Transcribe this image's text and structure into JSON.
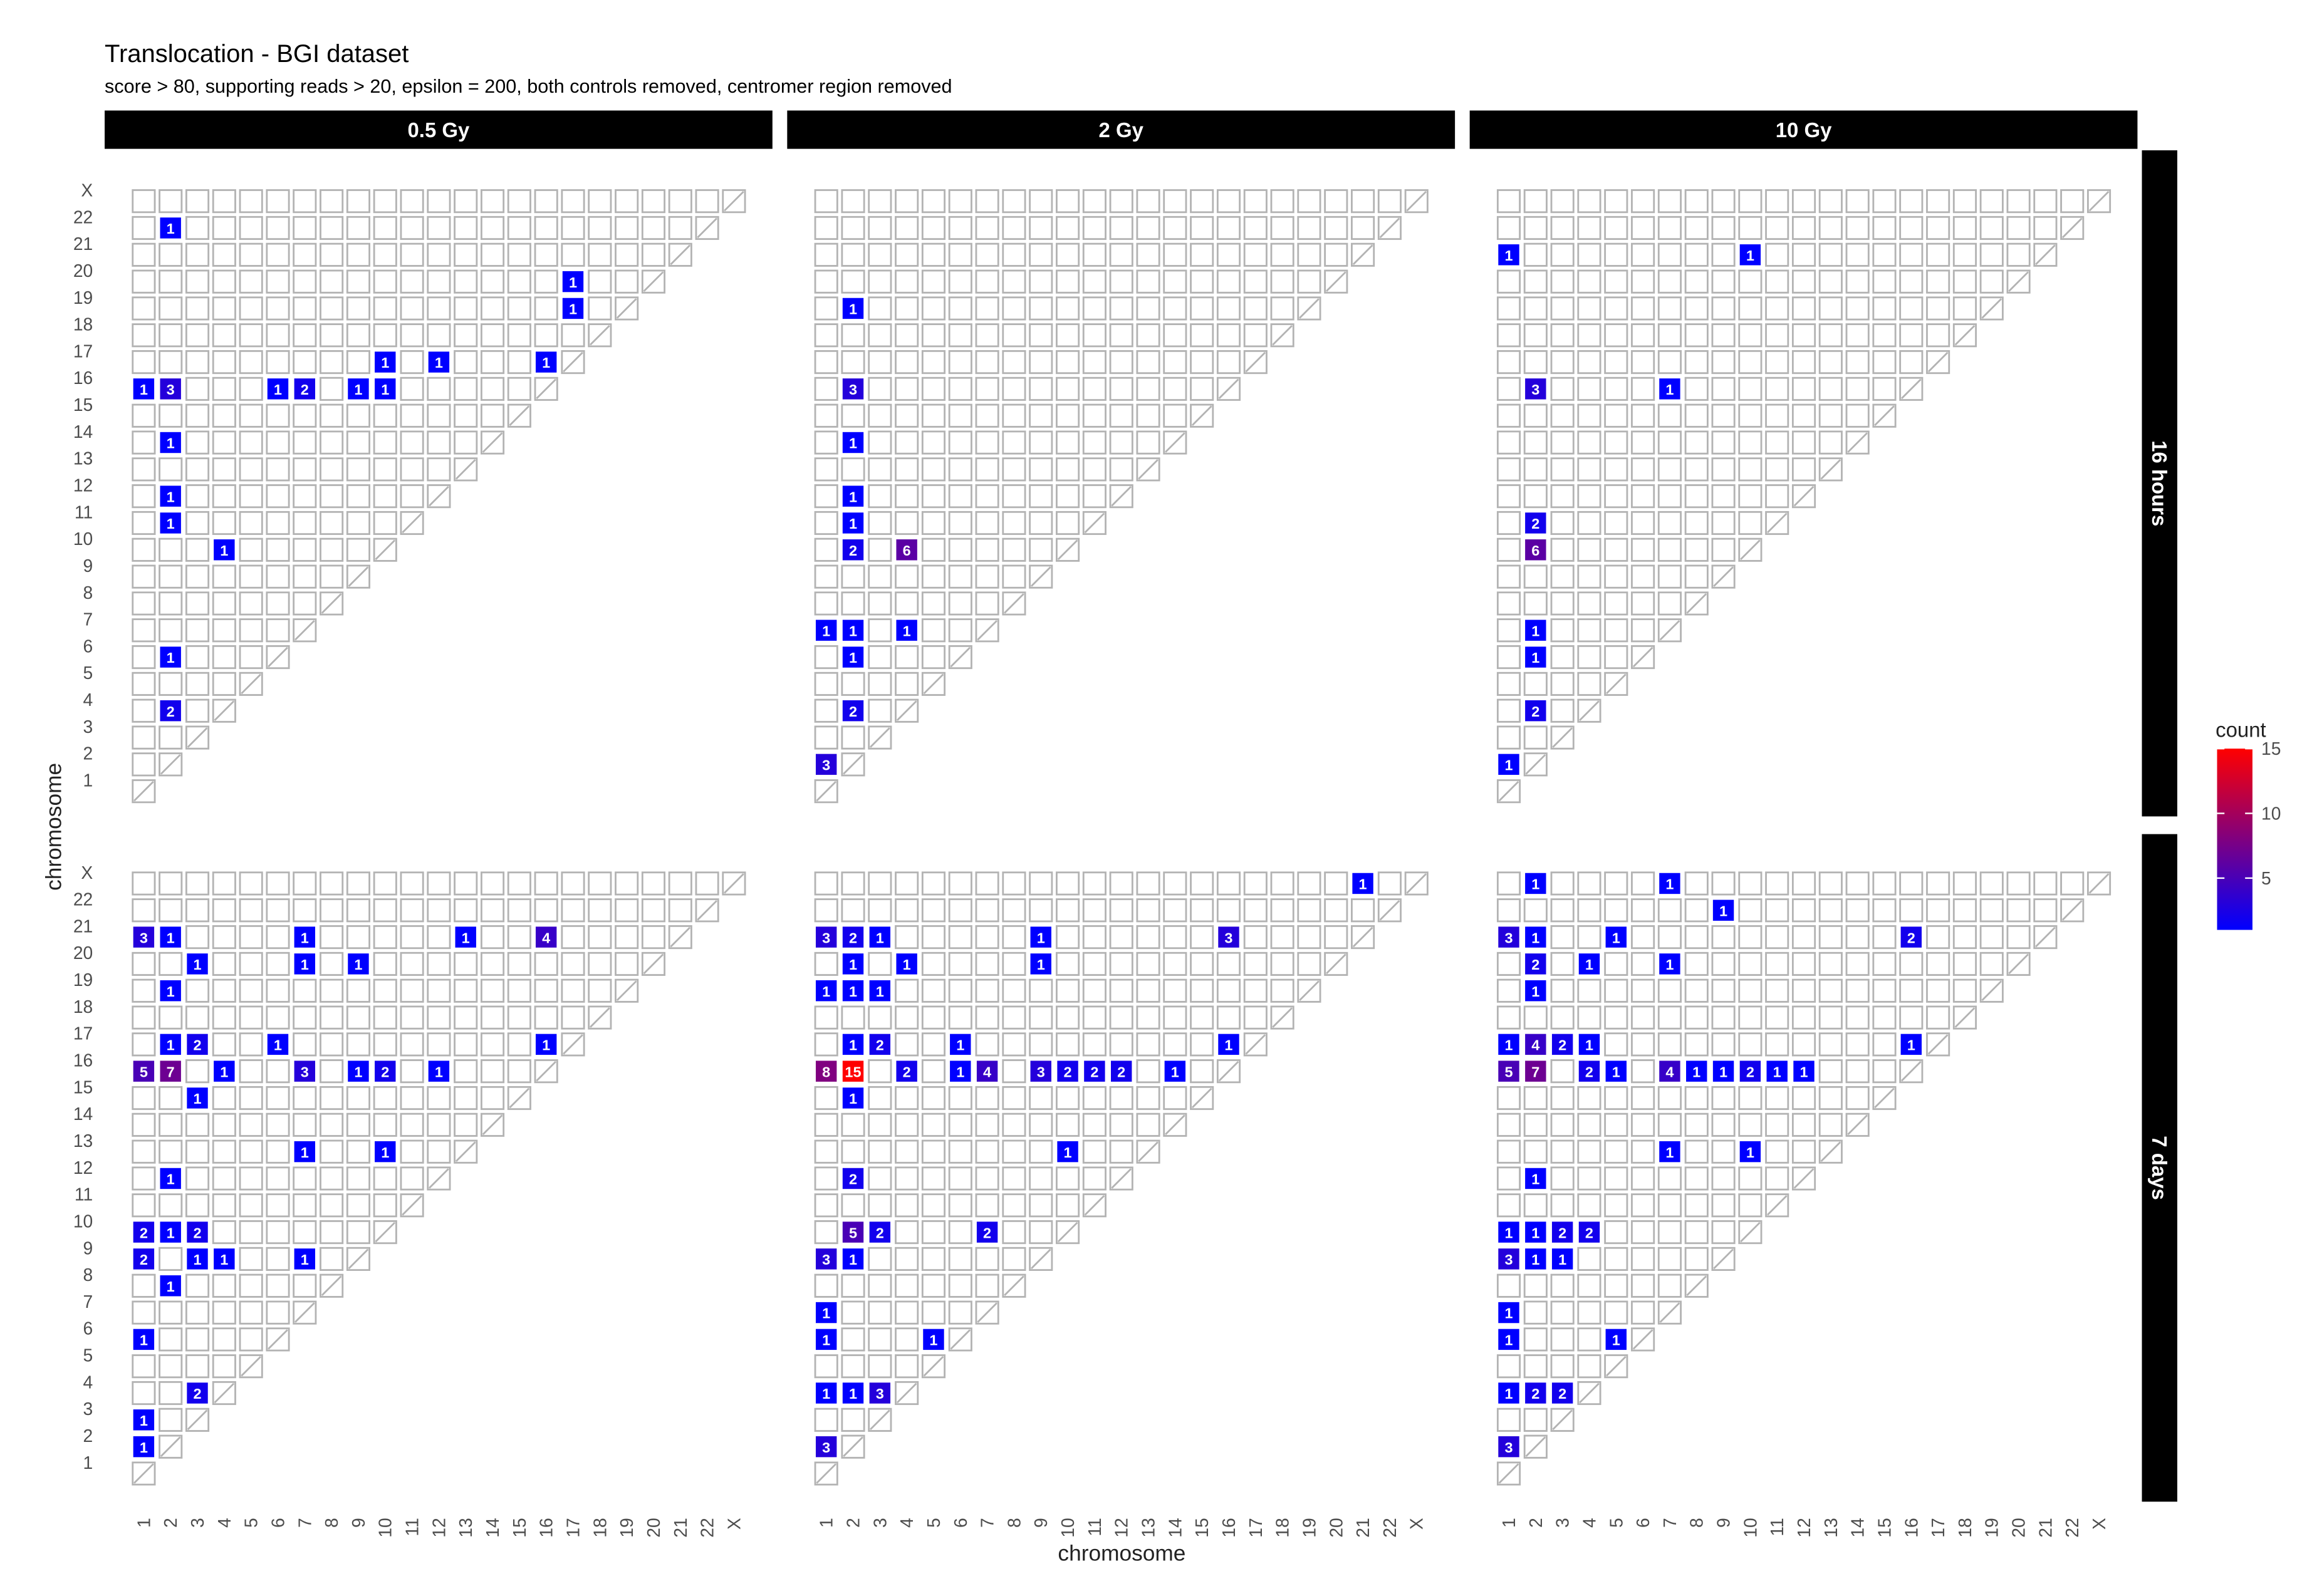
{
  "chart_data": {
    "type": "heatmap",
    "title": "Translocation - BGI dataset",
    "subtitle": "score > 80, supporting reads > 20, epsilon = 200, both controls removed, centromer region removed",
    "xlabel": "chromosome",
    "ylabel": "chromosome",
    "chromosomes": [
      "1",
      "2",
      "3",
      "4",
      "5",
      "6",
      "7",
      "8",
      "9",
      "10",
      "11",
      "12",
      "13",
      "14",
      "15",
      "16",
      "17",
      "18",
      "19",
      "20",
      "21",
      "22",
      "X"
    ],
    "columns": [
      "0.5 Gy",
      "2 Gy",
      "10 Gy"
    ],
    "rows": [
      "16 hours",
      "7 days"
    ],
    "legend": {
      "title": "count",
      "ticks": [
        5,
        10,
        15
      ],
      "min": 1,
      "max": 15,
      "low_color": "#0000ff",
      "high_color": "#ff0000"
    },
    "colors": {
      "empty_stroke": "#b3b3b3",
      "strip_bg": "#000000",
      "strip_text": "#ffffff",
      "label_text": "#ffffff",
      "axis_text": "#4d4d4d"
    },
    "panels": [
      {
        "column": "0.5 Gy",
        "row": "16 hours",
        "cells": [
          [
            "1",
            "16",
            1
          ],
          [
            "2",
            "22",
            1
          ],
          [
            "2",
            "16",
            3
          ],
          [
            "2",
            "14",
            1
          ],
          [
            "2",
            "12",
            1
          ],
          [
            "2",
            "11",
            1
          ],
          [
            "2",
            "6",
            1
          ],
          [
            "2",
            "4",
            2
          ],
          [
            "4",
            "10",
            1
          ],
          [
            "6",
            "16",
            1
          ],
          [
            "7",
            "16",
            2
          ],
          [
            "9",
            "16",
            1
          ],
          [
            "10",
            "17",
            1
          ],
          [
            "10",
            "16",
            1
          ],
          [
            "12",
            "17",
            1
          ],
          [
            "16",
            "17",
            1
          ],
          [
            "17",
            "20",
            1
          ],
          [
            "17",
            "19",
            1
          ]
        ]
      },
      {
        "column": "2 Gy",
        "row": "16 hours",
        "cells": [
          [
            "1",
            "7",
            1
          ],
          [
            "1",
            "2",
            3
          ],
          [
            "2",
            "19",
            1
          ],
          [
            "2",
            "16",
            3
          ],
          [
            "2",
            "14",
            1
          ],
          [
            "2",
            "12",
            1
          ],
          [
            "2",
            "11",
            1
          ],
          [
            "2",
            "10",
            2
          ],
          [
            "2",
            "7",
            1
          ],
          [
            "2",
            "6",
            1
          ],
          [
            "2",
            "4",
            2
          ],
          [
            "4",
            "10",
            6
          ],
          [
            "4",
            "7",
            1
          ]
        ]
      },
      {
        "column": "10 Gy",
        "row": "16 hours",
        "cells": [
          [
            "1",
            "21",
            1
          ],
          [
            "1",
            "2",
            1
          ],
          [
            "2",
            "16",
            3
          ],
          [
            "2",
            "11",
            2
          ],
          [
            "2",
            "10",
            6
          ],
          [
            "2",
            "7",
            1
          ],
          [
            "2",
            "6",
            1
          ],
          [
            "2",
            "4",
            2
          ],
          [
            "7",
            "16",
            1
          ],
          [
            "10",
            "21",
            1
          ]
        ]
      },
      {
        "column": "0.5 Gy",
        "row": "7 days",
        "cells": [
          [
            "1",
            "21",
            3
          ],
          [
            "1",
            "16",
            5
          ],
          [
            "1",
            "10",
            2
          ],
          [
            "1",
            "9",
            2
          ],
          [
            "1",
            "6",
            1
          ],
          [
            "1",
            "3",
            1
          ],
          [
            "1",
            "2",
            1
          ],
          [
            "2",
            "21",
            1
          ],
          [
            "2",
            "19",
            1
          ],
          [
            "2",
            "17",
            1
          ],
          [
            "2",
            "16",
            7
          ],
          [
            "2",
            "12",
            1
          ],
          [
            "2",
            "10",
            1
          ],
          [
            "2",
            "8",
            1
          ],
          [
            "3",
            "20",
            1
          ],
          [
            "3",
            "17",
            2
          ],
          [
            "3",
            "15",
            1
          ],
          [
            "3",
            "10",
            2
          ],
          [
            "3",
            "9",
            1
          ],
          [
            "3",
            "4",
            2
          ],
          [
            "4",
            "16",
            1
          ],
          [
            "4",
            "9",
            1
          ],
          [
            "6",
            "17",
            1
          ],
          [
            "7",
            "21",
            1
          ],
          [
            "7",
            "20",
            1
          ],
          [
            "7",
            "16",
            3
          ],
          [
            "7",
            "13",
            1
          ],
          [
            "7",
            "9",
            1
          ],
          [
            "9",
            "20",
            1
          ],
          [
            "9",
            "16",
            1
          ],
          [
            "10",
            "16",
            2
          ],
          [
            "10",
            "13",
            1
          ],
          [
            "12",
            "16",
            1
          ],
          [
            "13",
            "21",
            1
          ],
          [
            "16",
            "21",
            4
          ],
          [
            "16",
            "17",
            1
          ]
        ]
      },
      {
        "column": "2 Gy",
        "row": "7 days",
        "cells": [
          [
            "1",
            "21",
            3
          ],
          [
            "1",
            "19",
            1
          ],
          [
            "1",
            "16",
            8
          ],
          [
            "1",
            "9",
            3
          ],
          [
            "1",
            "7",
            1
          ],
          [
            "1",
            "6",
            1
          ],
          [
            "1",
            "4",
            1
          ],
          [
            "1",
            "2",
            3
          ],
          [
            "2",
            "21",
            2
          ],
          [
            "2",
            "20",
            1
          ],
          [
            "2",
            "19",
            1
          ],
          [
            "2",
            "17",
            1
          ],
          [
            "2",
            "16",
            15
          ],
          [
            "2",
            "15",
            1
          ],
          [
            "2",
            "12",
            2
          ],
          [
            "2",
            "10",
            5
          ],
          [
            "2",
            "9",
            1
          ],
          [
            "2",
            "4",
            1
          ],
          [
            "3",
            "21",
            1
          ],
          [
            "3",
            "19",
            1
          ],
          [
            "3",
            "17",
            2
          ],
          [
            "3",
            "10",
            2
          ],
          [
            "3",
            "4",
            3
          ],
          [
            "4",
            "20",
            1
          ],
          [
            "4",
            "16",
            2
          ],
          [
            "5",
            "6",
            1
          ],
          [
            "6",
            "17",
            1
          ],
          [
            "6",
            "16",
            1
          ],
          [
            "7",
            "16",
            4
          ],
          [
            "7",
            "10",
            2
          ],
          [
            "9",
            "21",
            1
          ],
          [
            "9",
            "20",
            1
          ],
          [
            "9",
            "16",
            3
          ],
          [
            "10",
            "16",
            2
          ],
          [
            "10",
            "13",
            1
          ],
          [
            "11",
            "16",
            2
          ],
          [
            "12",
            "16",
            2
          ],
          [
            "14",
            "16",
            1
          ],
          [
            "16",
            "21",
            3
          ],
          [
            "16",
            "17",
            1
          ],
          [
            "21",
            "X",
            1
          ]
        ]
      },
      {
        "column": "10 Gy",
        "row": "7 days",
        "cells": [
          [
            "1",
            "21",
            3
          ],
          [
            "1",
            "17",
            1
          ],
          [
            "1",
            "16",
            5
          ],
          [
            "1",
            "10",
            1
          ],
          [
            "1",
            "9",
            3
          ],
          [
            "1",
            "7",
            1
          ],
          [
            "1",
            "6",
            1
          ],
          [
            "1",
            "4",
            1
          ],
          [
            "1",
            "2",
            3
          ],
          [
            "2",
            "X",
            1
          ],
          [
            "2",
            "21",
            1
          ],
          [
            "2",
            "20",
            2
          ],
          [
            "2",
            "19",
            1
          ],
          [
            "2",
            "17",
            4
          ],
          [
            "2",
            "16",
            7
          ],
          [
            "2",
            "12",
            1
          ],
          [
            "2",
            "10",
            1
          ],
          [
            "2",
            "9",
            1
          ],
          [
            "2",
            "4",
            2
          ],
          [
            "3",
            "17",
            2
          ],
          [
            "3",
            "10",
            2
          ],
          [
            "3",
            "9",
            1
          ],
          [
            "3",
            "4",
            2
          ],
          [
            "4",
            "20",
            1
          ],
          [
            "4",
            "17",
            1
          ],
          [
            "4",
            "16",
            2
          ],
          [
            "4",
            "10",
            2
          ],
          [
            "5",
            "21",
            1
          ],
          [
            "5",
            "16",
            1
          ],
          [
            "5",
            "6",
            1
          ],
          [
            "7",
            "X",
            1
          ],
          [
            "7",
            "20",
            1
          ],
          [
            "7",
            "16",
            4
          ],
          [
            "7",
            "13",
            1
          ],
          [
            "8",
            "16",
            1
          ],
          [
            "9",
            "22",
            1
          ],
          [
            "9",
            "16",
            1
          ],
          [
            "10",
            "16",
            2
          ],
          [
            "10",
            "13",
            1
          ],
          [
            "11",
            "16",
            1
          ],
          [
            "12",
            "16",
            1
          ],
          [
            "16",
            "21",
            2
          ],
          [
            "16",
            "17",
            1
          ]
        ]
      }
    ]
  }
}
